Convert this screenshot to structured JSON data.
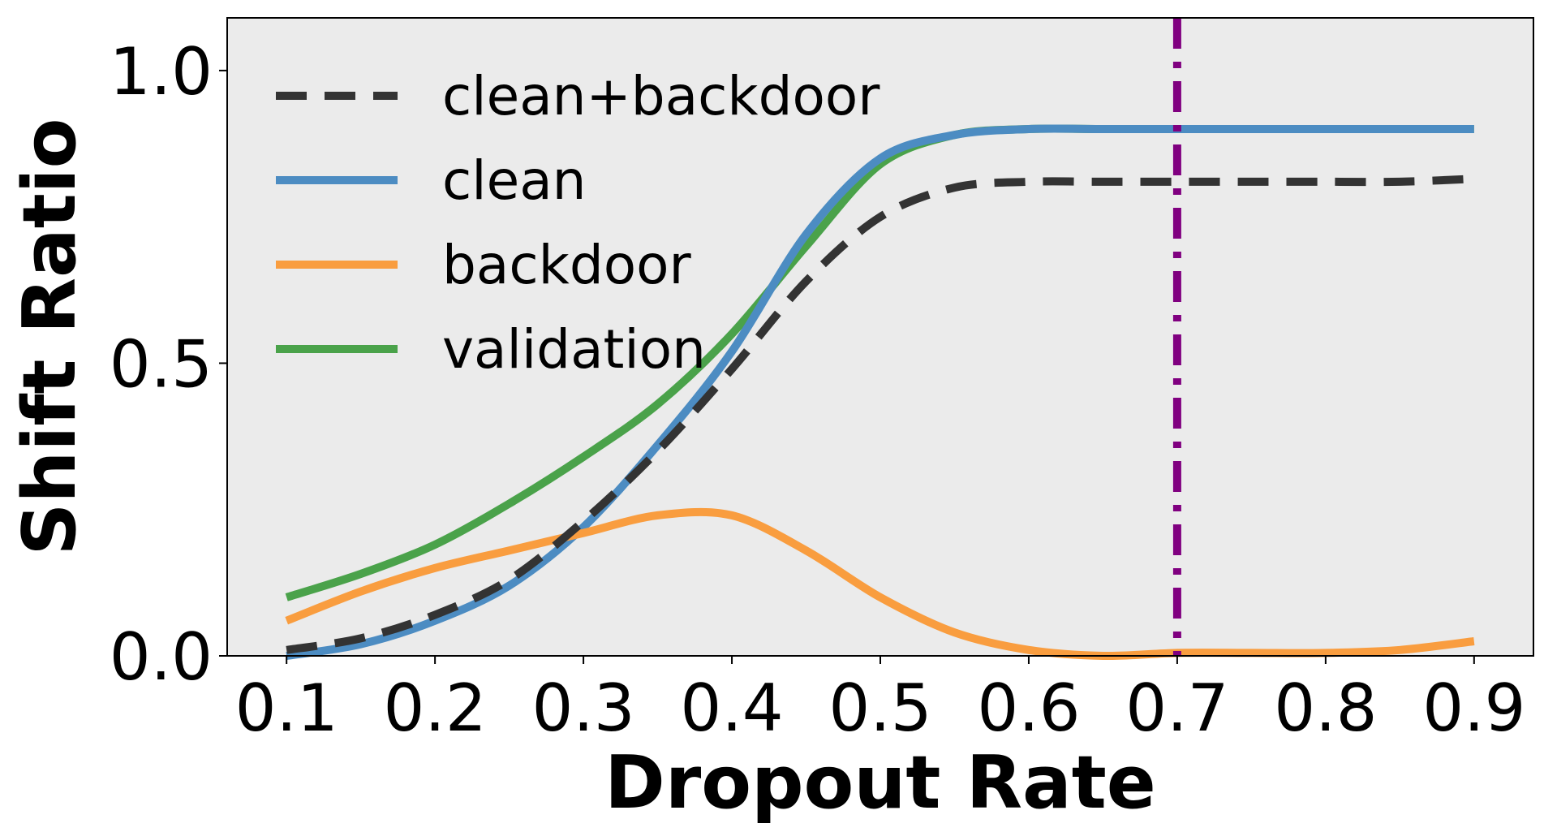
{
  "chart_data": {
    "type": "line",
    "title": "",
    "xlabel": "Dropout Rate",
    "ylabel": "Shift Ratio",
    "xlim": [
      0.06,
      0.94
    ],
    "ylim": [
      0.0,
      1.09
    ],
    "xticks": [
      "0.1",
      "0.2",
      "0.3",
      "0.4",
      "0.5",
      "0.6",
      "0.7",
      "0.8",
      "0.9"
    ],
    "yticks": [
      "0.0",
      "0.5",
      "1.0"
    ],
    "grid": false,
    "background": "#ebebeb",
    "legend_position": "top-left",
    "x": [
      0.1,
      0.15,
      0.2,
      0.25,
      0.3,
      0.35,
      0.4,
      0.45,
      0.5,
      0.55,
      0.6,
      0.65,
      0.7,
      0.75,
      0.8,
      0.85,
      0.9
    ],
    "series": [
      {
        "name": "clean+backdoor",
        "color": "#333333",
        "style": "dashed",
        "values": [
          0.01,
          0.03,
          0.07,
          0.13,
          0.23,
          0.35,
          0.49,
          0.64,
          0.75,
          0.8,
          0.81,
          0.81,
          0.81,
          0.81,
          0.81,
          0.81,
          0.815
        ]
      },
      {
        "name": "clean",
        "color": "#4c8cc2",
        "style": "solid",
        "values": [
          0.0,
          0.02,
          0.06,
          0.12,
          0.22,
          0.36,
          0.52,
          0.72,
          0.85,
          0.89,
          0.9,
          0.9,
          0.9,
          0.9,
          0.9,
          0.9,
          0.9
        ]
      },
      {
        "name": "backdoor",
        "color": "#f99d3f",
        "style": "solid",
        "values": [
          0.06,
          0.11,
          0.15,
          0.18,
          0.21,
          0.24,
          0.24,
          0.18,
          0.1,
          0.04,
          0.01,
          0.0,
          0.005,
          0.005,
          0.005,
          0.01,
          0.025
        ]
      },
      {
        "name": "validation",
        "color": "#4aa24a",
        "style": "solid",
        "values": [
          0.1,
          0.14,
          0.19,
          0.26,
          0.34,
          0.43,
          0.55,
          0.7,
          0.84,
          0.89,
          0.9,
          0.9,
          0.9,
          0.9,
          0.9,
          0.9,
          0.9
        ]
      }
    ],
    "annotations": [
      {
        "type": "vline",
        "x": 0.7,
        "color": "#800080",
        "style": "dashdot"
      }
    ]
  }
}
